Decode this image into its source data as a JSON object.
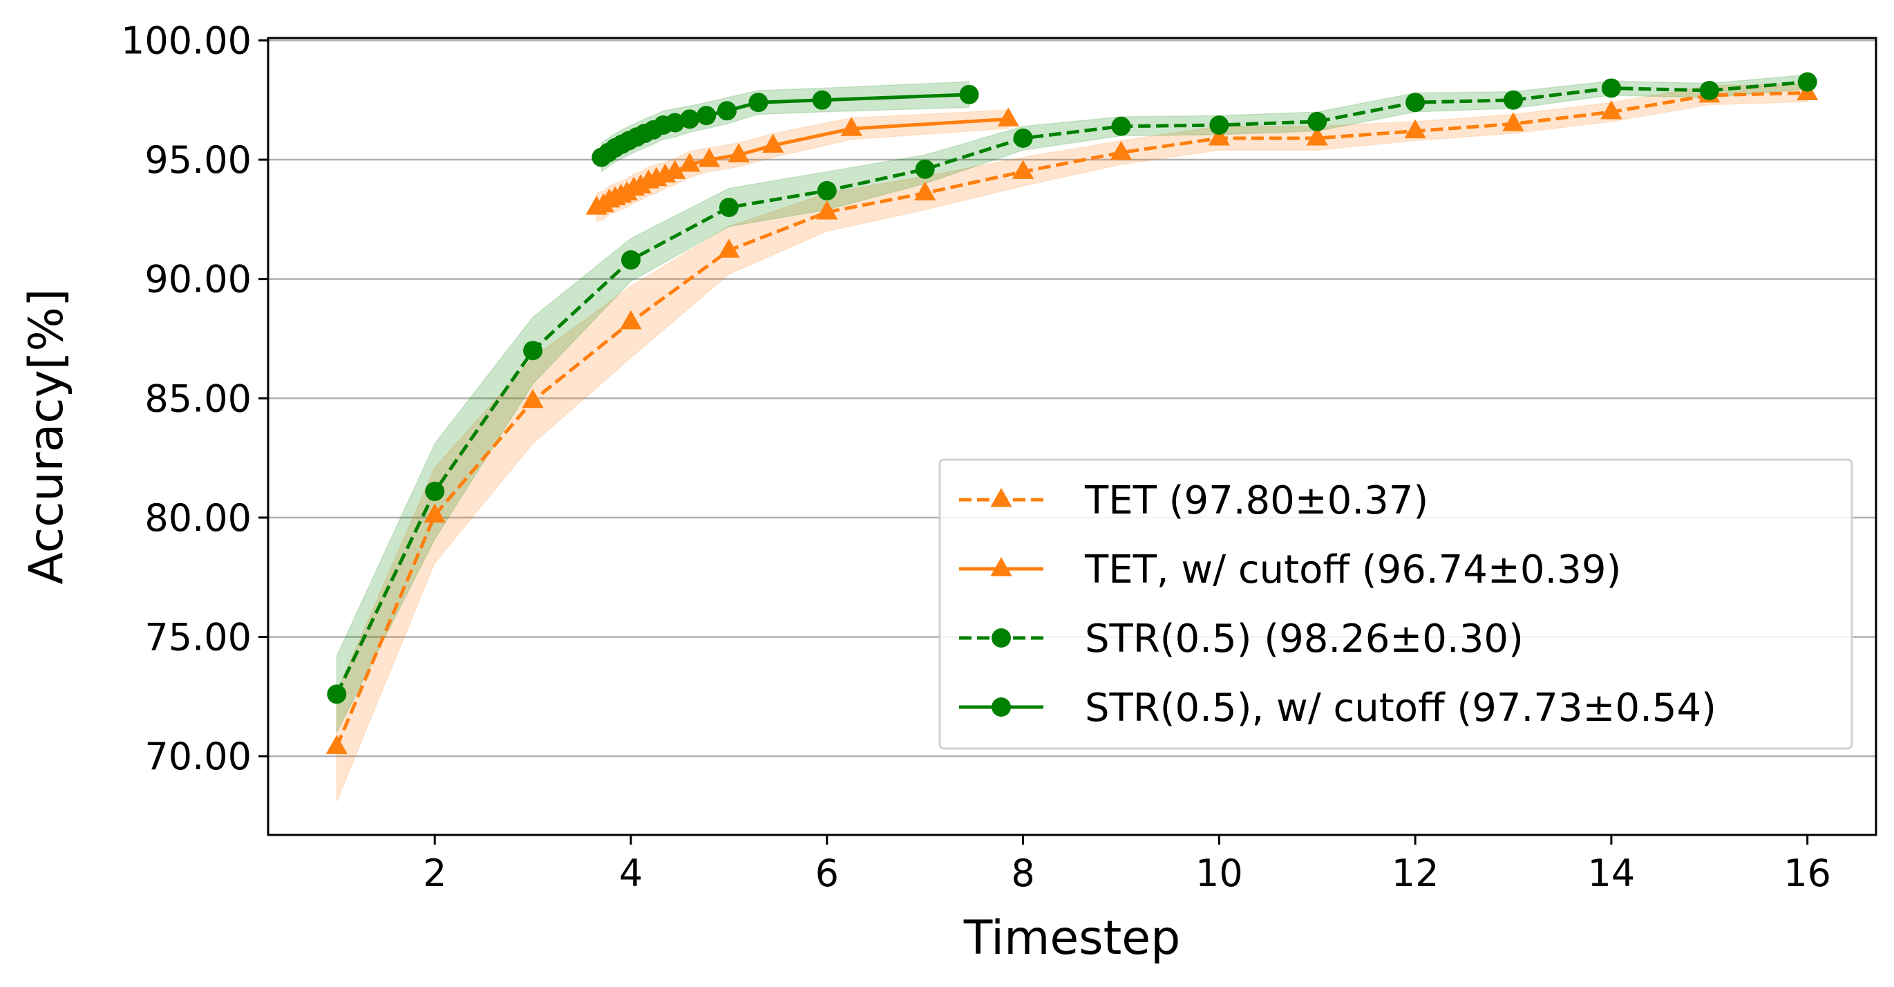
{
  "chart_data": {
    "type": "line",
    "title": "",
    "xlabel": "Timestep",
    "ylabel": "Accuracy[%]",
    "xlim": [
      0.3,
      16.7
    ],
    "ylim": [
      66.7,
      100.1
    ],
    "xticks": [
      2,
      4,
      6,
      8,
      10,
      12,
      14,
      16
    ],
    "xtick_labels": [
      "2",
      "4",
      "6",
      "8",
      "10",
      "12",
      "14",
      "16"
    ],
    "yticks": [
      70,
      75,
      80,
      85,
      90,
      95,
      100
    ],
    "ytick_labels": [
      "70.00",
      "75.00",
      "80.00",
      "85.00",
      "90.00",
      "95.00",
      "100.00"
    ],
    "grid": "horizontal",
    "legend_position": "lower-right",
    "series": [
      {
        "name": "TET (97.80±0.37)",
        "color": "#ff7f0e",
        "linestyle": "dashed",
        "marker": "triangle",
        "x": [
          1,
          2,
          3,
          4,
          5,
          6,
          7,
          8,
          9,
          10,
          11,
          12,
          13,
          14,
          15,
          16
        ],
        "y": [
          70.4,
          80.1,
          84.9,
          88.2,
          91.2,
          92.8,
          93.6,
          94.5,
          95.3,
          95.9,
          95.9,
          96.2,
          96.5,
          97.0,
          97.7,
          97.8
        ],
        "band": [
          2.3,
          2.0,
          1.8,
          1.5,
          1.0,
          0.8,
          0.7,
          0.6,
          0.5,
          0.5,
          0.5,
          0.4,
          0.4,
          0.4,
          0.4,
          0.37
        ]
      },
      {
        "name": "TET, w/ cutoff (96.74±0.39)",
        "color": "#ff7f0e",
        "linestyle": "solid",
        "marker": "triangle",
        "x": [
          3.65,
          3.72,
          3.78,
          3.84,
          3.9,
          3.96,
          4.03,
          4.1,
          4.18,
          4.26,
          4.35,
          4.45,
          4.6,
          4.8,
          5.1,
          5.45,
          6.25,
          7.85
        ],
        "y": [
          93.0,
          93.1,
          93.3,
          93.4,
          93.5,
          93.6,
          93.8,
          93.9,
          94.1,
          94.2,
          94.35,
          94.5,
          94.8,
          95.0,
          95.2,
          95.6,
          96.3,
          96.7
        ],
        "band": [
          0.6,
          0.6,
          0.6,
          0.6,
          0.6,
          0.6,
          0.6,
          0.6,
          0.6,
          0.6,
          0.55,
          0.55,
          0.55,
          0.5,
          0.5,
          0.5,
          0.45,
          0.39
        ]
      },
      {
        "name": "STR(0.5) (98.26±0.30)",
        "color": "#008000",
        "linestyle": "dashed",
        "marker": "circle",
        "x": [
          1,
          2,
          3,
          4,
          5,
          6,
          7,
          8,
          9,
          10,
          11,
          12,
          13,
          14,
          15,
          16
        ],
        "y": [
          72.6,
          81.1,
          87.0,
          90.8,
          93.0,
          93.7,
          94.6,
          95.9,
          96.4,
          96.45,
          96.6,
          97.4,
          97.5,
          98.0,
          97.9,
          98.26
        ],
        "band": [
          1.6,
          2.0,
          1.4,
          0.9,
          0.8,
          0.8,
          0.6,
          0.5,
          0.4,
          0.4,
          0.4,
          0.4,
          0.35,
          0.3,
          0.3,
          0.3
        ]
      },
      {
        "name": "STR(0.5), w/ cutoff (97.73±0.54)",
        "color": "#008000",
        "linestyle": "solid",
        "marker": "circle",
        "x": [
          3.7,
          3.77,
          3.84,
          3.91,
          3.98,
          4.06,
          4.14,
          4.23,
          4.33,
          4.45,
          4.6,
          4.77,
          4.98,
          5.3,
          5.95,
          7.45
        ],
        "y": [
          95.1,
          95.3,
          95.5,
          95.65,
          95.8,
          95.95,
          96.1,
          96.25,
          96.45,
          96.55,
          96.7,
          96.85,
          97.05,
          97.4,
          97.5,
          97.73
        ],
        "band": [
          0.6,
          0.6,
          0.6,
          0.6,
          0.6,
          0.6,
          0.6,
          0.6,
          0.6,
          0.6,
          0.55,
          0.55,
          0.55,
          0.5,
          0.5,
          0.54
        ]
      }
    ]
  }
}
